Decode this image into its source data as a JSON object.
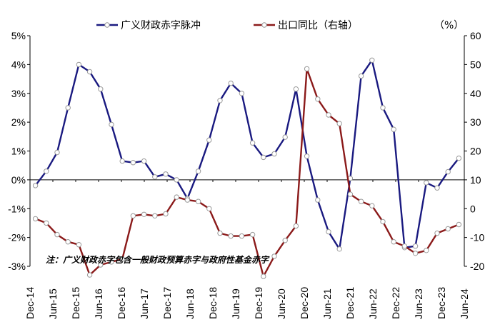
{
  "chart_data": {
    "type": "line",
    "grid": false,
    "legend_position": "top",
    "unit_label_right": "（%）",
    "note": "注：广义财政赤字包含一般财政预算赤字与政府性基金赤字",
    "x_ticks": [
      "Dec-14",
      "Jun-15",
      "Dec-15",
      "Jun-16",
      "Dec-16",
      "Jun-17",
      "Dec-17",
      "Jun-18",
      "Dec-18",
      "Jun-19",
      "Dec-19",
      "Jun-20",
      "Dec-20",
      "Jun-21",
      "Dec-21",
      "Jun-22",
      "Dec-22",
      "Jun-23",
      "Dec-23",
      "Jun-24"
    ],
    "y_left": {
      "ticks": [
        "5%",
        "4%",
        "3%",
        "2%",
        "1%",
        "0%",
        "-1%",
        "-2%",
        "-3%"
      ],
      "range": [
        -3,
        5
      ]
    },
    "y_right": {
      "ticks": [
        "60",
        "50",
        "40",
        "30",
        "20",
        "10",
        "0",
        "-10",
        "-20"
      ],
      "range": [
        -20,
        60
      ]
    },
    "series": [
      {
        "name": "广义财政赤字脉冲",
        "axis": "left",
        "color": "#1a1a80",
        "values": [
          -0.2,
          0.3,
          0.95,
          2.5,
          4.0,
          3.75,
          3.15,
          1.92,
          0.65,
          0.6,
          0.65,
          0.1,
          0.2,
          0.0,
          -0.65,
          0.3,
          1.38,
          2.75,
          3.35,
          3.0,
          1.28,
          0.78,
          0.9,
          1.48,
          3.15,
          0.82,
          -0.7,
          -1.8,
          -2.4,
          0.05,
          3.6,
          4.15,
          2.5,
          1.75,
          -2.35,
          -2.3,
          -0.1,
          -0.28,
          0.28,
          0.75
        ]
      },
      {
        "name": "出口同比（右轴）",
        "axis": "right",
        "color": "#8b1a1a",
        "values": [
          -3.5,
          -5.0,
          -9.0,
          -11.5,
          -12.5,
          -23.0,
          -19.5,
          -18.5,
          -17.5,
          -2.5,
          -2.0,
          -2.5,
          -1.8,
          4.0,
          3.0,
          2.5,
          0.0,
          -8.5,
          -9.5,
          -9.5,
          -9.0,
          -23.5,
          -16.5,
          -11.0,
          -6.0,
          48.5,
          38.0,
          32.5,
          29.5,
          5.0,
          2.5,
          1.0,
          -4.5,
          -11.5,
          -13.0,
          -15.5,
          -14.5,
          -8.5,
          -7.0,
          -5.5
        ]
      }
    ]
  }
}
